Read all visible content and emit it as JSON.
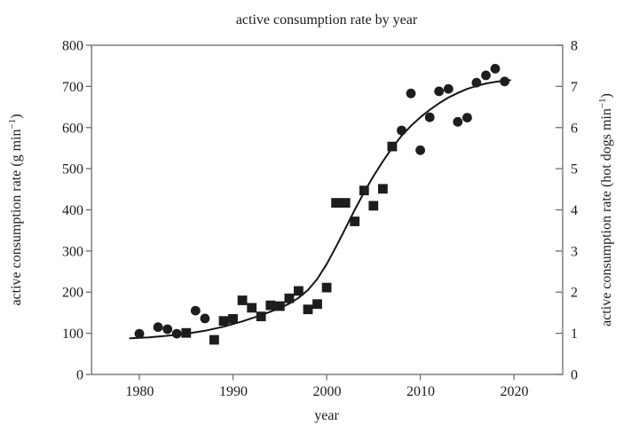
{
  "title": "active consumption rate by year",
  "axes": {
    "left": {
      "label_pre": "active consumption rate (g min",
      "label_sup": "−1",
      "label_post": ")"
    },
    "right": {
      "label_pre": "active consumption rate (hot dogs min",
      "label_sup": "−1",
      "label_post": ")"
    },
    "bottom": {
      "label": "year"
    }
  },
  "colors": {
    "background": "#ffffff",
    "marker": "#1d1d1f",
    "curve": "#141414",
    "axis": "#757678",
    "text": "#1a1a1a"
  },
  "chart_data": {
    "type": "scatter",
    "title": "active consumption rate by year",
    "xlabel": "year",
    "ylabel_left": "active consumption rate (g min−1)",
    "ylabel_right": "active consumption rate (hot dogs min−1)",
    "grid": false,
    "legend": "none",
    "xlim": [
      1974.9,
      2025.2
    ],
    "ylim_left": [
      0,
      800
    ],
    "ylim_right": [
      0,
      8
    ],
    "xticks": [
      1980,
      1990,
      2000,
      2010,
      2020
    ],
    "yticks_left": [
      0,
      100,
      200,
      300,
      400,
      500,
      600,
      700,
      800
    ],
    "yticks_right": [
      0,
      1,
      2,
      3,
      4,
      5,
      6,
      7,
      8
    ],
    "series": [
      {
        "name": "measured-rate-circles",
        "marker": "circle",
        "points": [
          [
            1980,
            99
          ],
          [
            1982,
            115
          ],
          [
            1983,
            110
          ],
          [
            1984,
            99
          ],
          [
            1986,
            155
          ],
          [
            1987,
            136
          ],
          [
            2008,
            593
          ],
          [
            2009,
            683
          ],
          [
            2010,
            545
          ],
          [
            2011,
            625
          ],
          [
            2012,
            688
          ],
          [
            2013,
            694
          ],
          [
            2014,
            614
          ],
          [
            2015,
            624
          ],
          [
            2016,
            709
          ],
          [
            2017,
            727
          ],
          [
            2018,
            743
          ],
          [
            2019,
            712
          ]
        ]
      },
      {
        "name": "estimated-rate-squares",
        "marker": "square",
        "points": [
          [
            1985,
            101
          ],
          [
            1988,
            84
          ],
          [
            1989,
            130
          ],
          [
            1990,
            135
          ],
          [
            1991,
            180
          ],
          [
            1992,
            162
          ],
          [
            1993,
            141
          ],
          [
            1994,
            168
          ],
          [
            1995,
            166
          ],
          [
            1996,
            185
          ],
          [
            1997,
            203
          ],
          [
            1998,
            158
          ],
          [
            1999,
            171
          ],
          [
            2000,
            211
          ],
          [
            2001,
            417
          ],
          [
            2002,
            417
          ],
          [
            2003,
            372
          ],
          [
            2004,
            447
          ],
          [
            2005,
            410
          ],
          [
            2006,
            451
          ],
          [
            2007,
            554
          ]
        ]
      }
    ],
    "fit_curve": {
      "name": "sigmoid-fit",
      "points": [
        [
          1979,
          88
        ],
        [
          1981,
          90
        ],
        [
          1983,
          94
        ],
        [
          1985,
          99
        ],
        [
          1987,
          106
        ],
        [
          1989,
          116
        ],
        [
          1991,
          129
        ],
        [
          1993,
          144
        ],
        [
          1995,
          161
        ],
        [
          1996,
          172
        ],
        [
          1997,
          186
        ],
        [
          1998,
          205
        ],
        [
          1999,
          232
        ],
        [
          2000,
          268
        ],
        [
          2001,
          310
        ],
        [
          2002,
          355
        ],
        [
          2003,
          400
        ],
        [
          2004,
          443
        ],
        [
          2005,
          482
        ],
        [
          2006,
          518
        ],
        [
          2007,
          551
        ],
        [
          2008,
          580
        ],
        [
          2009,
          604
        ],
        [
          2010,
          625
        ],
        [
          2011,
          643
        ],
        [
          2012,
          659
        ],
        [
          2013,
          673
        ],
        [
          2014,
          684
        ],
        [
          2015,
          694
        ],
        [
          2016,
          701
        ],
        [
          2017,
          707
        ],
        [
          2018,
          711
        ],
        [
          2019,
          714
        ],
        [
          2019.6,
          715
        ]
      ]
    }
  }
}
